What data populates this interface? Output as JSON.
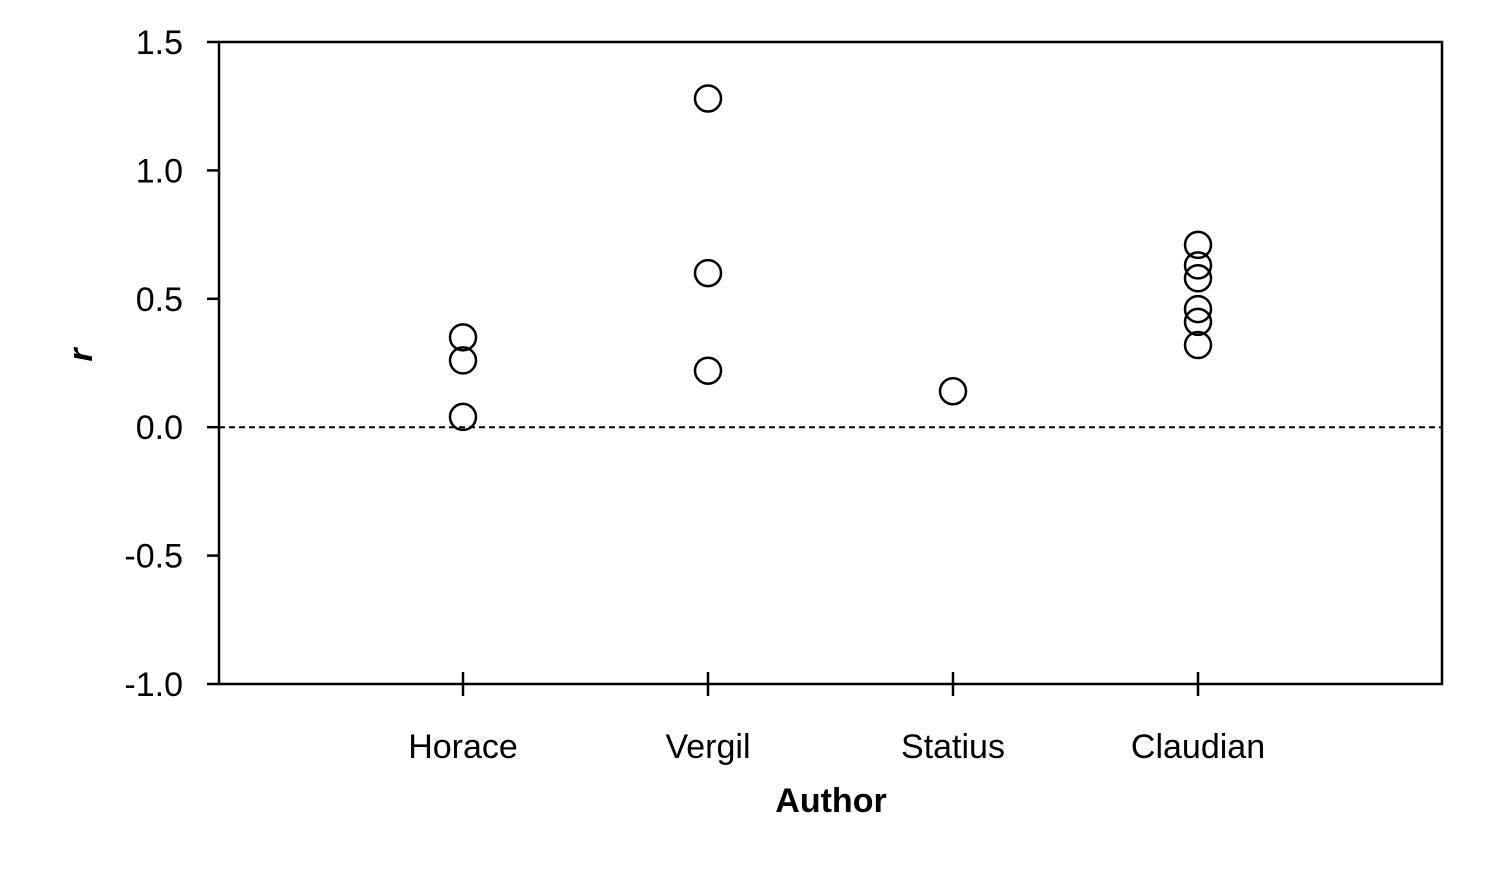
{
  "chart_data": {
    "type": "scatter",
    "xlabel": "Author",
    "ylabel": "r",
    "categories": [
      "Horace",
      "Vergil",
      "Statius",
      "Claudian"
    ],
    "ylim": [
      -1.0,
      1.5
    ],
    "yticks": [
      "-1.0",
      "-0.5",
      "0.0",
      "0.5",
      "1.0",
      "1.5"
    ],
    "reference_line": {
      "y": 0.0,
      "style": "dashed"
    },
    "grid": false,
    "legend": "none",
    "marker": "open-circle",
    "points": [
      {
        "category": "Horace",
        "y": 0.35
      },
      {
        "category": "Horace",
        "y": 0.26
      },
      {
        "category": "Horace",
        "y": 0.04
      },
      {
        "category": "Vergil",
        "y": 1.28
      },
      {
        "category": "Vergil",
        "y": 0.6
      },
      {
        "category": "Vergil",
        "y": 0.22
      },
      {
        "category": "Statius",
        "y": 0.14
      },
      {
        "category": "Claudian",
        "y": 0.71
      },
      {
        "category": "Claudian",
        "y": 0.63
      },
      {
        "category": "Claudian",
        "y": 0.58
      },
      {
        "category": "Claudian",
        "y": 0.46
      },
      {
        "category": "Claudian",
        "y": 0.41
      },
      {
        "category": "Claudian",
        "y": 0.32
      }
    ]
  }
}
